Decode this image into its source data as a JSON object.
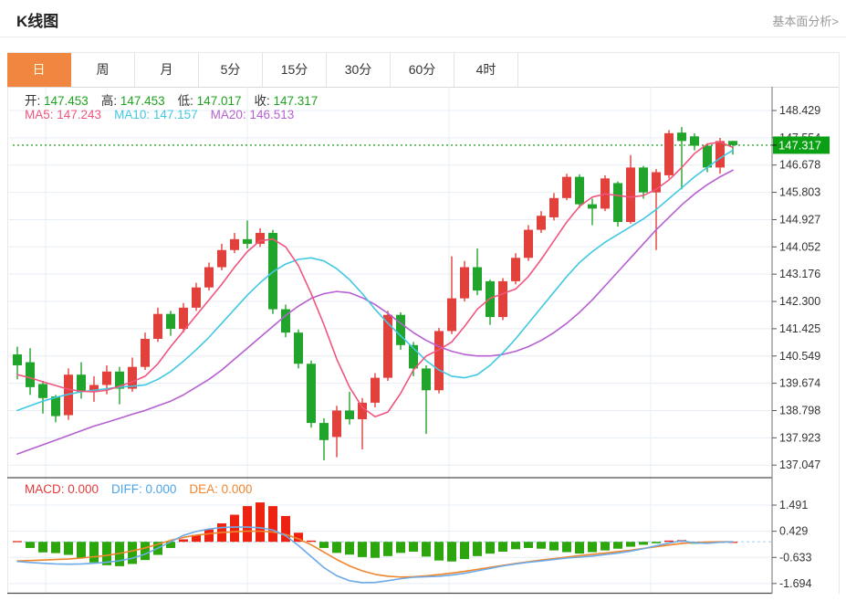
{
  "header": {
    "title": "K线图",
    "link_label": "基本面分析>"
  },
  "toolbar": {
    "tabs": [
      {
        "id": "day",
        "label": "日",
        "active": true
      },
      {
        "id": "week",
        "label": "周",
        "active": false
      },
      {
        "id": "month",
        "label": "月",
        "active": false
      },
      {
        "id": "5min",
        "label": "5分",
        "active": false
      },
      {
        "id": "15min",
        "label": "15分",
        "active": false
      },
      {
        "id": "30min",
        "label": "30分",
        "active": false
      },
      {
        "id": "60min",
        "label": "60分",
        "active": false
      },
      {
        "id": "4hour",
        "label": "4时",
        "active": false
      }
    ]
  },
  "readout": {
    "ohlc": [
      {
        "label": "开:",
        "value": "147.453"
      },
      {
        "label": "高:",
        "value": "147.453"
      },
      {
        "label": "低:",
        "value": "147.017"
      },
      {
        "label": "收:",
        "value": "147.317"
      }
    ],
    "ohlc_value_color": "#1ea31e",
    "ma": [
      {
        "label": "MA5:",
        "value": "147.243",
        "color": "#f0557e"
      },
      {
        "label": "MA10:",
        "value": "147.157",
        "color": "#41c8e3"
      },
      {
        "label": "MA20:",
        "value": "146.513",
        "color": "#b75fd2"
      }
    ]
  },
  "macd_readout": [
    {
      "label": "MACD:",
      "value": "0.000",
      "color": "#e23b3b"
    },
    {
      "label": "DIFF:",
      "value": "0.000",
      "color": "#4da3e8"
    },
    {
      "label": "DEA:",
      "value": "0.000",
      "color": "#f0852c"
    }
  ],
  "price_axis": {
    "ticks": [
      "148.429",
      "147.554",
      "146.678",
      "145.803",
      "144.927",
      "144.052",
      "143.176",
      "142.300",
      "141.425",
      "140.549",
      "139.674",
      "138.798",
      "137.923",
      "137.047"
    ],
    "current_label": "147.317"
  },
  "colors": {
    "up": "#e2403a",
    "down": "#21a42c",
    "macd_up": "#ee2211",
    "macd_down": "#2da60e",
    "ma5": "#f0557e",
    "ma10": "#41c8e3",
    "ma20": "#b75fd2",
    "diff": "#6cabe8",
    "dea": "#f0852c",
    "current_line": "#2ca52c",
    "current_label_bg": "#0aa013",
    "grid": "#e7edf4",
    "axis": "#888888",
    "dark_border": "#4d4d4d",
    "text": "#333333",
    "macd_zero_dash": "#aad4f5"
  },
  "chart_data": {
    "type": "candlestick+macd",
    "title": "K线图",
    "price_range": [
      137.047,
      148.429
    ],
    "price_ticks": [
      148.429,
      147.554,
      146.678,
      145.803,
      144.927,
      144.052,
      143.176,
      142.3,
      141.425,
      140.549,
      139.674,
      138.798,
      137.923,
      137.047
    ],
    "current_price": 147.317,
    "last_bar": {
      "open": 147.453,
      "high": 147.453,
      "low": 147.017,
      "close": 147.317
    },
    "candles_ohlc_hl": [
      [
        140.6,
        140.25,
        140.85,
        139.8
      ],
      [
        140.35,
        139.55,
        140.8,
        139.3
      ],
      [
        139.65,
        139.2,
        139.75,
        138.7
      ],
      [
        139.25,
        138.62,
        139.3,
        138.42
      ],
      [
        138.65,
        139.95,
        140.15,
        138.5
      ],
      [
        139.95,
        139.4,
        140.35,
        139.18
      ],
      [
        139.4,
        139.62,
        139.9,
        139.08
      ],
      [
        139.62,
        140.05,
        140.25,
        139.32
      ],
      [
        140.05,
        139.5,
        140.2,
        139.0
      ],
      [
        139.5,
        140.2,
        140.5,
        139.4
      ],
      [
        140.2,
        141.1,
        141.3,
        140.1
      ],
      [
        141.1,
        141.9,
        142.1,
        141.0
      ],
      [
        141.9,
        141.42,
        142.0,
        141.2
      ],
      [
        141.42,
        142.1,
        142.25,
        141.3
      ],
      [
        142.1,
        142.75,
        142.9,
        142.0
      ],
      [
        142.75,
        143.4,
        143.55,
        142.65
      ],
      [
        143.4,
        143.95,
        144.15,
        143.3
      ],
      [
        143.95,
        144.3,
        144.5,
        143.85
      ],
      [
        144.3,
        144.15,
        144.9,
        144.0
      ],
      [
        144.15,
        144.5,
        144.65,
        144.05
      ],
      [
        144.5,
        142.05,
        144.6,
        141.9
      ],
      [
        142.05,
        141.3,
        142.2,
        141.15
      ],
      [
        141.3,
        140.3,
        141.4,
        140.15
      ],
      [
        140.3,
        138.4,
        140.4,
        138.25
      ],
      [
        138.4,
        137.85,
        138.55,
        137.2
      ],
      [
        137.95,
        138.8,
        138.95,
        137.3
      ],
      [
        138.8,
        138.52,
        139.4,
        138.35
      ],
      [
        138.52,
        139.05,
        139.2,
        137.55
      ],
      [
        139.05,
        139.85,
        140.0,
        138.9
      ],
      [
        139.85,
        141.87,
        142.0,
        139.75
      ],
      [
        141.87,
        140.9,
        141.95,
        140.75
      ],
      [
        140.9,
        140.15,
        141.0,
        139.9
      ],
      [
        140.15,
        139.45,
        140.25,
        138.05
      ],
      [
        139.45,
        141.35,
        141.45,
        139.35
      ],
      [
        141.35,
        142.4,
        143.75,
        141.25
      ],
      [
        142.4,
        143.4,
        143.6,
        142.3
      ],
      [
        143.4,
        142.65,
        144.0,
        142.5
      ],
      [
        142.95,
        141.8,
        143.0,
        141.55
      ],
      [
        141.8,
        142.95,
        143.05,
        141.7
      ],
      [
        142.95,
        143.7,
        143.85,
        142.85
      ],
      [
        143.7,
        144.6,
        144.75,
        143.6
      ],
      [
        144.6,
        145.05,
        145.2,
        144.5
      ],
      [
        145.0,
        145.62,
        145.78,
        144.9
      ],
      [
        145.62,
        146.3,
        146.4,
        145.55
      ],
      [
        146.3,
        145.42,
        146.38,
        145.3
      ],
      [
        145.42,
        145.28,
        145.6,
        144.75
      ],
      [
        145.28,
        146.25,
        146.35,
        145.2
      ],
      [
        146.1,
        144.85,
        146.15,
        144.7
      ],
      [
        144.85,
        146.6,
        147.0,
        144.8
      ],
      [
        146.6,
        145.8,
        146.65,
        145.6
      ],
      [
        145.8,
        146.45,
        146.55,
        143.95
      ],
      [
        146.35,
        147.7,
        147.8,
        146.25
      ],
      [
        147.72,
        147.45,
        147.9,
        145.9
      ],
      [
        147.6,
        147.3,
        147.7,
        147.15
      ],
      [
        147.3,
        146.6,
        147.38,
        146.45
      ],
      [
        146.6,
        147.45,
        147.55,
        146.4
      ],
      [
        147.453,
        147.317,
        147.453,
        147.017
      ]
    ],
    "ma5": [
      139.95,
      139.85,
      139.72,
      139.6,
      139.48,
      139.42,
      139.4,
      139.45,
      139.58,
      139.72,
      139.9,
      140.3,
      140.85,
      141.35,
      141.85,
      142.35,
      142.85,
      143.4,
      143.9,
      144.25,
      144.3,
      144.05,
      143.45,
      142.55,
      141.55,
      140.45,
      139.55,
      138.9,
      138.6,
      138.75,
      139.35,
      140.1,
      140.55,
      140.75,
      141.0,
      141.5,
      142.05,
      142.4,
      142.55,
      142.7,
      143.1,
      143.65,
      144.25,
      144.85,
      145.35,
      145.65,
      145.75,
      145.7,
      145.65,
      145.7,
      145.9,
      146.2,
      146.6,
      147.05,
      147.35,
      147.42,
      147.243
    ],
    "ma10": [
      138.8,
      138.95,
      139.1,
      139.22,
      139.32,
      139.4,
      139.45,
      139.5,
      139.55,
      139.58,
      139.62,
      139.8,
      140.05,
      140.38,
      140.75,
      141.15,
      141.6,
      142.05,
      142.5,
      142.9,
      143.25,
      143.5,
      143.65,
      143.7,
      143.6,
      143.35,
      143.0,
      142.55,
      142.05,
      141.6,
      141.2,
      140.8,
      140.4,
      140.1,
      139.9,
      139.85,
      139.95,
      140.25,
      140.65,
      141.1,
      141.6,
      142.1,
      142.6,
      143.1,
      143.55,
      143.9,
      144.2,
      144.45,
      144.7,
      144.95,
      145.25,
      145.6,
      145.95,
      146.3,
      146.6,
      146.9,
      147.157
    ],
    "ma20": [
      137.4,
      137.55,
      137.7,
      137.85,
      138.0,
      138.15,
      138.3,
      138.42,
      138.55,
      138.68,
      138.8,
      138.95,
      139.1,
      139.3,
      139.55,
      139.8,
      140.1,
      140.45,
      140.8,
      141.15,
      141.5,
      141.85,
      142.15,
      142.4,
      142.55,
      142.62,
      142.58,
      142.42,
      142.2,
      141.92,
      141.6,
      141.3,
      141.05,
      140.85,
      140.7,
      140.6,
      140.55,
      140.55,
      140.6,
      140.7,
      140.85,
      141.05,
      141.3,
      141.6,
      141.95,
      142.35,
      142.8,
      143.25,
      143.7,
      144.15,
      144.6,
      145.0,
      145.4,
      145.75,
      146.05,
      146.3,
      146.513
    ],
    "macd": {
      "ticks": [
        1.491,
        0.429,
        -0.633,
        -1.694
      ],
      "tick_labels": [
        "1.491",
        "0.429",
        "-0.633",
        "-1.694"
      ],
      "hist": [
        0.03,
        -0.25,
        -0.43,
        -0.46,
        -0.53,
        -0.65,
        -0.84,
        -0.95,
        -0.99,
        -0.9,
        -0.74,
        -0.53,
        -0.25,
        0.1,
        0.28,
        0.5,
        0.75,
        1.1,
        1.45,
        1.6,
        1.45,
        1.05,
        0.37,
        0.05,
        -0.25,
        -0.45,
        -0.52,
        -0.62,
        -0.65,
        -0.58,
        -0.45,
        -0.4,
        -0.6,
        -0.76,
        -0.8,
        -0.7,
        -0.58,
        -0.48,
        -0.4,
        -0.3,
        -0.25,
        -0.28,
        -0.35,
        -0.42,
        -0.48,
        -0.42,
        -0.35,
        -0.28,
        -0.2,
        -0.12,
        -0.06,
        0.05,
        0.07,
        -0.08,
        -0.05,
        -0.02,
        0.0
      ],
      "diff": [
        -0.8,
        -0.84,
        -0.87,
        -0.9,
        -0.91,
        -0.9,
        -0.87,
        -0.83,
        -0.77,
        -0.67,
        -0.5,
        -0.26,
        0.0,
        0.26,
        0.42,
        0.52,
        0.58,
        0.6,
        0.6,
        0.57,
        0.48,
        0.25,
        -0.15,
        -0.6,
        -1.05,
        -1.38,
        -1.58,
        -1.66,
        -1.65,
        -1.58,
        -1.5,
        -1.44,
        -1.42,
        -1.4,
        -1.35,
        -1.28,
        -1.18,
        -1.08,
        -0.98,
        -0.9,
        -0.83,
        -0.78,
        -0.72,
        -0.66,
        -0.62,
        -0.58,
        -0.52,
        -0.46,
        -0.38,
        -0.28,
        -0.16,
        -0.05,
        0.04,
        -0.04,
        -0.06,
        -0.02,
        0.0
      ],
      "dea": [
        -0.78,
        -0.76,
        -0.74,
        -0.72,
        -0.7,
        -0.66,
        -0.61,
        -0.55,
        -0.47,
        -0.37,
        -0.25,
        -0.1,
        0.06,
        0.18,
        0.27,
        0.33,
        0.38,
        0.41,
        0.43,
        0.43,
        0.4,
        0.3,
        0.12,
        -0.12,
        -0.42,
        -0.72,
        -0.98,
        -1.18,
        -1.32,
        -1.4,
        -1.43,
        -1.42,
        -1.38,
        -1.33,
        -1.27,
        -1.2,
        -1.12,
        -1.04,
        -0.96,
        -0.88,
        -0.81,
        -0.74,
        -0.68,
        -0.62,
        -0.56,
        -0.51,
        -0.46,
        -0.4,
        -0.34,
        -0.27,
        -0.2,
        -0.13,
        -0.07,
        -0.03,
        -0.01,
        0.0,
        0.0
      ]
    }
  }
}
